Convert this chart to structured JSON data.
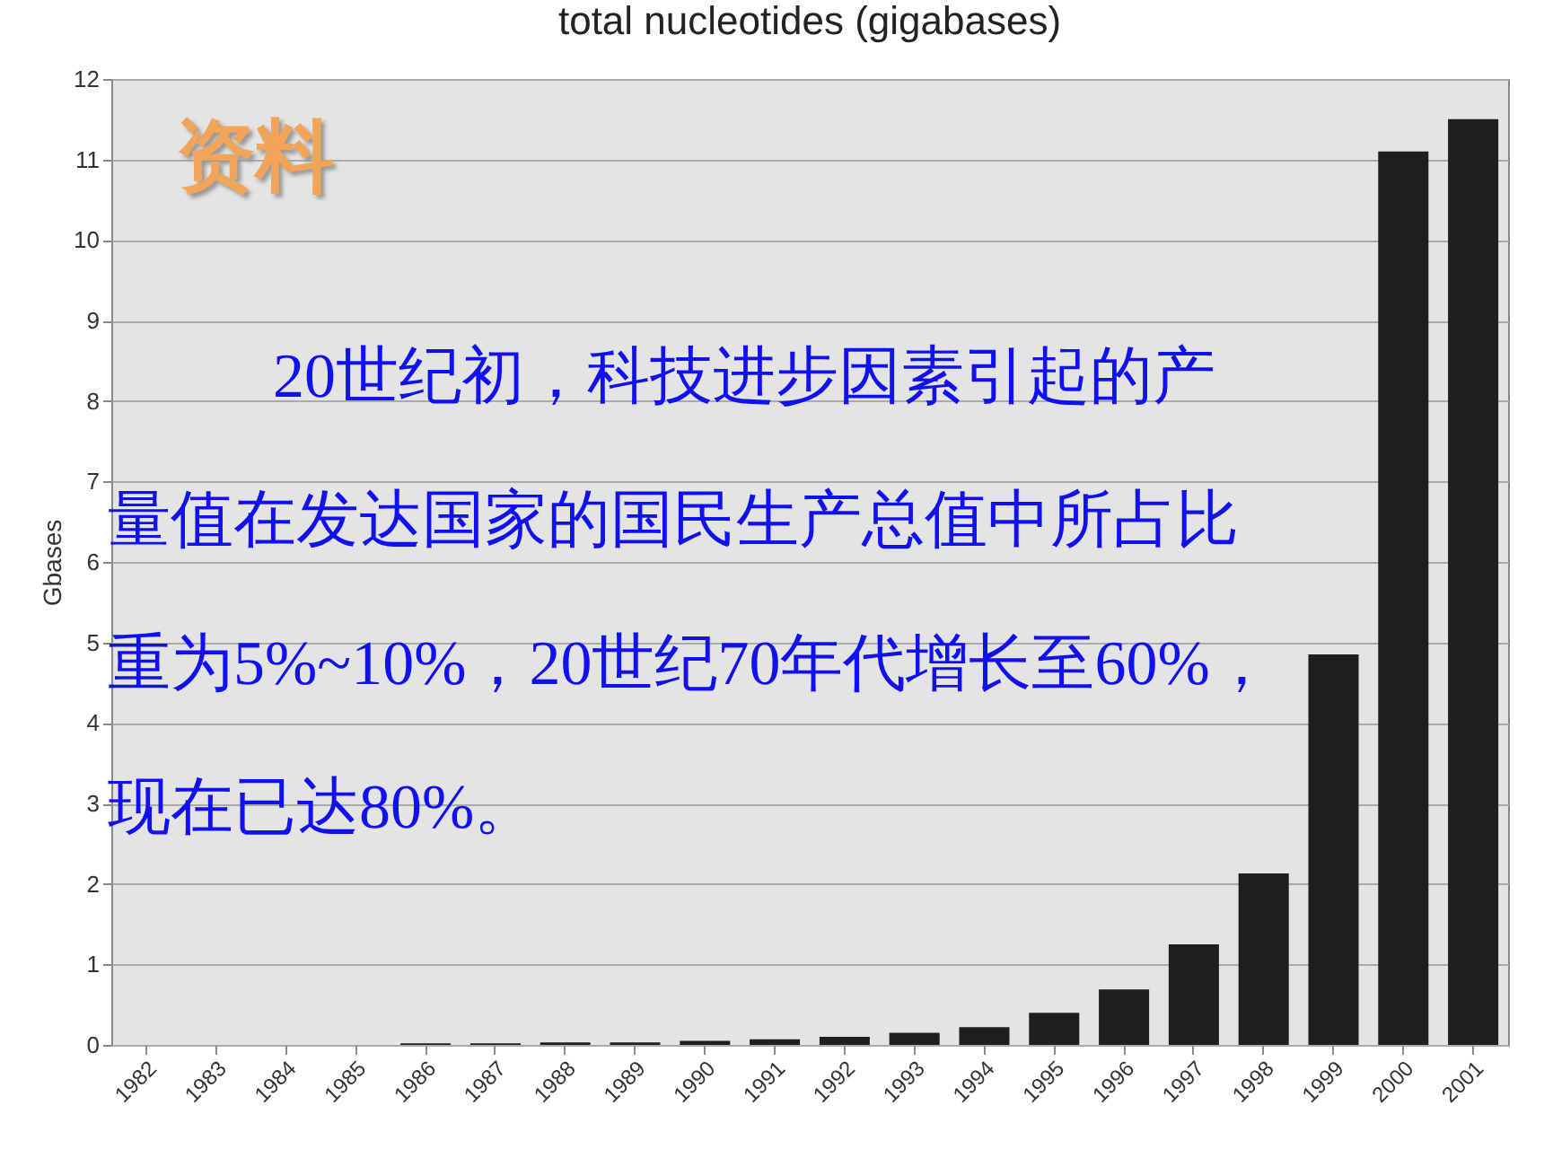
{
  "chart_data": {
    "type": "bar",
    "title": "total nucleotides (gigabases)",
    "ylabel": "Gbases",
    "categories": [
      "1982",
      "1983",
      "1984",
      "1985",
      "1986",
      "1987",
      "1988",
      "1989",
      "1990",
      "1991",
      "1992",
      "1993",
      "1994",
      "1995",
      "1996",
      "1997",
      "1998",
      "1999",
      "2000",
      "2001"
    ],
    "values": [
      0,
      0,
      0,
      0,
      0.02,
      0.02,
      0.03,
      0.03,
      0.05,
      0.07,
      0.1,
      0.15,
      0.22,
      0.4,
      0.69,
      1.25,
      2.13,
      4.85,
      11.1,
      11.5
    ],
    "color": "#1e1e1e",
    "ylim": [
      0,
      12
    ],
    "yticks": [
      0,
      1,
      2,
      3,
      4,
      5,
      6,
      7,
      8,
      9,
      10,
      11,
      12
    ],
    "grid": "y",
    "annotations": [
      "资料",
      "20世纪初，科技进步因素引起的产量值在发达国家的国民生产总值中所占比重为5%~10%，20世纪70年代增长至60%，现在已达80%。"
    ]
  }
}
